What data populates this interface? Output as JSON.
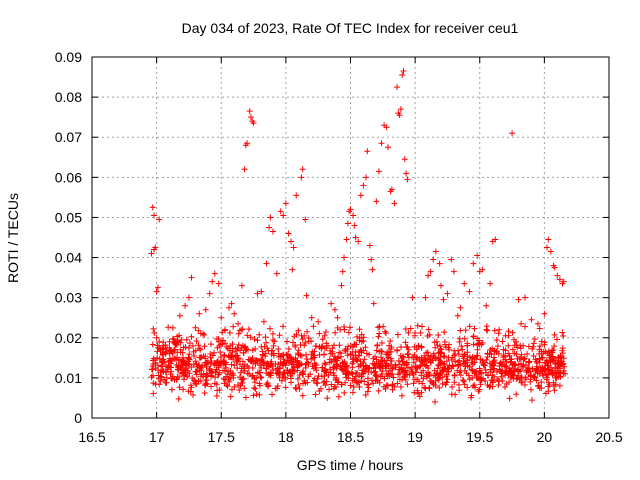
{
  "chart_data": {
    "type": "scatter",
    "title": "Day 034 of 2023, Rate Of TEC Index for receiver ceu1",
    "xlabel": "GPS time / hours",
    "ylabel": "ROTI / TECUs",
    "xlim": [
      16.5,
      20.5
    ],
    "ylim": [
      0,
      0.09
    ],
    "xticks": [
      16.5,
      17,
      17.5,
      18,
      18.5,
      19,
      19.5,
      20,
      20.5
    ],
    "xtick_labels": [
      "16.5",
      "17",
      "17.5",
      "18",
      "18.5",
      "19",
      "19.5",
      "20",
      "20.5"
    ],
    "yticks": [
      0,
      0.01,
      0.02,
      0.03,
      0.04,
      0.05,
      0.06,
      0.07,
      0.08,
      0.09
    ],
    "ytick_labels": [
      "0",
      "0.01",
      "0.02",
      "0.03",
      "0.04",
      "0.05",
      "0.06",
      "0.07",
      "0.08",
      "0.09"
    ],
    "grid": true,
    "marker": "+",
    "series": [
      {
        "name": "ROTI",
        "color": "#ff0000",
        "points": [
          [
            16.97,
            0.0525
          ],
          [
            16.98,
            0.0505
          ],
          [
            17.02,
            0.0495
          ],
          [
            16.99,
            0.0425
          ],
          [
            16.98,
            0.042
          ],
          [
            16.96,
            0.041
          ],
          [
            17.01,
            0.0325
          ],
          [
            17.0,
            0.0315
          ],
          [
            17.0,
            0.02
          ],
          [
            17.02,
            0.019
          ],
          [
            17.03,
            0.017
          ],
          [
            17.05,
            0.018
          ],
          [
            17.07,
            0.0165
          ],
          [
            17.1,
            0.019
          ],
          [
            17.15,
            0.0185
          ],
          [
            17.18,
            0.0255
          ],
          [
            17.22,
            0.028
          ],
          [
            17.25,
            0.03
          ],
          [
            17.27,
            0.035
          ],
          [
            17.3,
            0.0225
          ],
          [
            17.33,
            0.026
          ],
          [
            17.36,
            0.021
          ],
          [
            17.38,
            0.027
          ],
          [
            17.41,
            0.031
          ],
          [
            17.43,
            0.034
          ],
          [
            17.45,
            0.036
          ],
          [
            17.48,
            0.0335
          ],
          [
            17.5,
            0.025
          ],
          [
            17.53,
            0.022
          ],
          [
            17.56,
            0.0275
          ],
          [
            17.58,
            0.0285
          ],
          [
            17.6,
            0.026
          ],
          [
            17.63,
            0.0235
          ],
          [
            17.66,
            0.022
          ],
          [
            17.66,
            0.033
          ],
          [
            17.68,
            0.062
          ],
          [
            17.69,
            0.068
          ],
          [
            17.7,
            0.0685
          ],
          [
            17.72,
            0.0765
          ],
          [
            17.73,
            0.075
          ],
          [
            17.74,
            0.074
          ],
          [
            17.75,
            0.0735
          ],
          [
            17.78,
            0.031
          ],
          [
            17.81,
            0.0315
          ],
          [
            17.83,
            0.024
          ],
          [
            17.85,
            0.0385
          ],
          [
            17.87,
            0.0475
          ],
          [
            17.88,
            0.05
          ],
          [
            17.9,
            0.0465
          ],
          [
            17.93,
            0.036
          ],
          [
            17.96,
            0.0515
          ],
          [
            17.98,
            0.0505
          ],
          [
            18.0,
            0.0535
          ],
          [
            18.02,
            0.046
          ],
          [
            18.04,
            0.044
          ],
          [
            18.05,
            0.037
          ],
          [
            18.06,
            0.0425
          ],
          [
            18.08,
            0.0555
          ],
          [
            18.12,
            0.06
          ],
          [
            18.13,
            0.062
          ],
          [
            18.15,
            0.0495
          ],
          [
            18.16,
            0.0305
          ],
          [
            18.2,
            0.025
          ],
          [
            18.25,
            0.024
          ],
          [
            18.3,
            0.0205
          ],
          [
            18.35,
            0.0285
          ],
          [
            18.38,
            0.027
          ],
          [
            18.4,
            0.025
          ],
          [
            18.42,
            0.022
          ],
          [
            18.43,
            0.033
          ],
          [
            18.44,
            0.0365
          ],
          [
            18.45,
            0.04
          ],
          [
            18.47,
            0.0445
          ],
          [
            18.48,
            0.0485
          ],
          [
            18.49,
            0.0515
          ],
          [
            18.5,
            0.052
          ],
          [
            18.52,
            0.0505
          ],
          [
            18.53,
            0.048
          ],
          [
            18.54,
            0.045
          ],
          [
            18.56,
            0.044
          ],
          [
            18.58,
            0.0555
          ],
          [
            18.6,
            0.058
          ],
          [
            18.62,
            0.06
          ],
          [
            18.63,
            0.0665
          ],
          [
            18.65,
            0.043
          ],
          [
            18.66,
            0.0395
          ],
          [
            18.67,
            0.037
          ],
          [
            18.68,
            0.0285
          ],
          [
            18.7,
            0.054
          ],
          [
            18.72,
            0.0615
          ],
          [
            18.74,
            0.0685
          ],
          [
            18.76,
            0.073
          ],
          [
            18.78,
            0.0725
          ],
          [
            18.79,
            0.0675
          ],
          [
            18.81,
            0.0565
          ],
          [
            18.82,
            0.057
          ],
          [
            18.84,
            0.0535
          ],
          [
            18.86,
            0.0825
          ],
          [
            18.87,
            0.076
          ],
          [
            18.88,
            0.0755
          ],
          [
            18.89,
            0.077
          ],
          [
            18.9,
            0.0855
          ],
          [
            18.91,
            0.0865
          ],
          [
            18.92,
            0.0645
          ],
          [
            18.93,
            0.061
          ],
          [
            18.94,
            0.0595
          ],
          [
            18.98,
            0.03
          ],
          [
            19.02,
            0.023
          ],
          [
            19.05,
            0.0175
          ],
          [
            19.08,
            0.03
          ],
          [
            19.1,
            0.0355
          ],
          [
            19.12,
            0.0365
          ],
          [
            19.14,
            0.0395
          ],
          [
            19.16,
            0.0415
          ],
          [
            19.19,
            0.0385
          ],
          [
            19.2,
            0.033
          ],
          [
            19.22,
            0.0295
          ],
          [
            19.25,
            0.031
          ],
          [
            19.28,
            0.0395
          ],
          [
            19.3,
            0.0365
          ],
          [
            19.33,
            0.0255
          ],
          [
            19.35,
            0.0275
          ],
          [
            19.38,
            0.0335
          ],
          [
            19.42,
            0.0315
          ],
          [
            19.45,
            0.0385
          ],
          [
            19.48,
            0.0405
          ],
          [
            19.5,
            0.0365
          ],
          [
            19.52,
            0.037
          ],
          [
            19.55,
            0.028
          ],
          [
            19.58,
            0.0335
          ],
          [
            19.6,
            0.044
          ],
          [
            19.62,
            0.0445
          ],
          [
            19.65,
            0.022
          ],
          [
            19.7,
            0.0205
          ],
          [
            19.75,
            0.071
          ],
          [
            19.8,
            0.0295
          ],
          [
            19.82,
            0.0235
          ],
          [
            19.85,
            0.03
          ],
          [
            19.9,
            0.0245
          ],
          [
            19.95,
            0.0235
          ],
          [
            20.0,
            0.026
          ],
          [
            20.02,
            0.0425
          ],
          [
            20.03,
            0.0445
          ],
          [
            20.05,
            0.0415
          ],
          [
            20.07,
            0.038
          ],
          [
            20.08,
            0.0375
          ],
          [
            20.1,
            0.0355
          ],
          [
            20.12,
            0.0345
          ],
          [
            20.14,
            0.0335
          ],
          [
            20.15,
            0.034
          ],
          [
            20.16,
            0.011
          ],
          [
            20.12,
            0.008
          ]
        ]
      }
    ],
    "baseline_band": {
      "description": "dense cluster of ROTI samples between 17.0 and 20.15 hours",
      "x_range": [
        16.96,
        20.16
      ],
      "typical": 0.01,
      "min": 0.003,
      "max": 0.02,
      "count": 1600
    }
  }
}
